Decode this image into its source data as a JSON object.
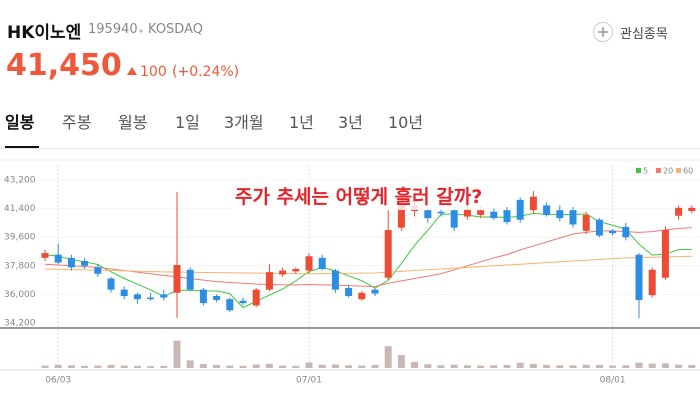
{
  "header": {
    "name": "HK이노엔",
    "code": "195940",
    "market": "KOSDAQ",
    "watch": "관심종목",
    "price": "41,450",
    "change": "100",
    "change_pct": "(+0.24%)"
  },
  "tabs": [
    "일봉",
    "주봉",
    "월봉",
    "1일",
    "3개월",
    "1년",
    "3년",
    "10년"
  ],
  "chart_data": {
    "type": "candlestick",
    "annotation": "주가 추세는 어떻게 흘러 갈까?",
    "categories": [
      null,
      "06/03",
      null,
      null,
      null,
      null,
      null,
      null,
      null,
      null,
      null,
      null,
      null,
      null,
      null,
      null,
      null,
      null,
      null,
      null,
      "07/01",
      null,
      null,
      null,
      null,
      null,
      null,
      null,
      null,
      null,
      null,
      null,
      null,
      null,
      null,
      null,
      null,
      null,
      null,
      null,
      null,
      null,
      null,
      "08/01",
      null,
      null,
      null,
      null,
      null,
      null
    ],
    "open": [
      38300,
      38500,
      38300,
      38100,
      37700,
      37000,
      36300,
      36000,
      35800,
      36000,
      36100,
      37550,
      36300,
      35900,
      35700,
      35600,
      35300,
      36300,
      37250,
      37450,
      37500,
      38300,
      37500,
      36400,
      35700,
      36300,
      37050,
      40200,
      41250,
      41300,
      41200,
      41300,
      40900,
      41000,
      41200,
      41300,
      41950,
      41300,
      41600,
      41300,
      41300,
      40000,
      40700,
      40000,
      40250,
      38500,
      35950,
      37050,
      40950,
      41250
    ],
    "high": [
      38800,
      39200,
      38500,
      38300,
      37900,
      37100,
      36500,
      36100,
      36100,
      36300,
      42450,
      37700,
      36400,
      36000,
      35800,
      35800,
      36400,
      37900,
      37700,
      37700,
      38600,
      38500,
      37600,
      36600,
      36200,
      36400,
      41300,
      42000,
      42000,
      41500,
      41400,
      41500,
      41600,
      41600,
      41400,
      41500,
      42100,
      42500,
      41800,
      41600,
      41500,
      41200,
      40800,
      40100,
      40500,
      38600,
      37700,
      40300,
      41600,
      41600
    ],
    "low": [
      38100,
      37900,
      37500,
      37600,
      37100,
      36100,
      35700,
      35400,
      35600,
      35600,
      34520,
      36200,
      35300,
      35500,
      34900,
      35300,
      35200,
      36200,
      37100,
      37300,
      37300,
      37500,
      36100,
      35800,
      35600,
      35900,
      36900,
      40000,
      40900,
      40500,
      40900,
      40000,
      40700,
      40800,
      40700,
      40400,
      40500,
      41100,
      40900,
      40600,
      40200,
      39800,
      39600,
      39700,
      39400,
      34500,
      35800,
      36900,
      40700,
      41100
    ],
    "close": [
      38600,
      38000,
      37700,
      37800,
      37300,
      36300,
      35900,
      35700,
      35700,
      35800,
      37850,
      36300,
      35450,
      35650,
      35000,
      35450,
      36300,
      37400,
      37500,
      37600,
      38400,
      37600,
      36300,
      35900,
      36100,
      36050,
      40050,
      41650,
      41600,
      40800,
      41100,
      40200,
      41350,
      41300,
      40800,
      40550,
      40700,
      42150,
      41000,
      40800,
      40400,
      41000,
      39700,
      39850,
      39600,
      35650,
      37550,
      40050,
      41450,
      41450
    ],
    "up_color": "#ee4b35",
    "down_color": "#2b8de3",
    "volume": [
      90000,
      120000,
      100000,
      80000,
      90000,
      110000,
      90000,
      80000,
      70000,
      80000,
      1000000,
      280000,
      150000,
      110000,
      90000,
      80000,
      130000,
      150000,
      90000,
      80000,
      200000,
      120000,
      130000,
      100000,
      90000,
      110000,
      800000,
      480000,
      220000,
      140000,
      100000,
      120000,
      100000,
      90000,
      100000,
      110000,
      190000,
      150000,
      110000,
      100000,
      100000,
      120000,
      110000,
      90000,
      100000,
      200000,
      160000,
      170000,
      120000,
      110000
    ],
    "volume_color": "#c9b7b5",
    "vlim": [
      0,
      1100000
    ],
    "ylim": [
      33885,
      43829
    ],
    "yticks": [
      {
        "value": 34200,
        "label": "34,200"
      },
      {
        "value": 36000,
        "label": "36,000"
      },
      {
        "value": 37800,
        "label": "37,800"
      },
      {
        "value": 39600,
        "label": "39,600"
      },
      {
        "value": 41400,
        "label": "41,400"
      },
      {
        "value": 43200,
        "label": "43,200"
      }
    ],
    "moving_averages": [
      {
        "name": "5",
        "color": "#3cc83c",
        "values": [
          38500,
          38400,
          38200,
          38050,
          37880,
          37420,
          37000,
          36640,
          36280,
          35880,
          36250,
          36270,
          36220,
          36210,
          36050,
          35170,
          35570,
          35960,
          36330,
          36850,
          37440,
          37700,
          37480,
          37160,
          36860,
          36390,
          36880,
          37950,
          39090,
          40030,
          41040,
          41070,
          40990,
          40870,
          40880,
          40840,
          40920,
          41100,
          41040,
          41040,
          41010,
          41070,
          40580,
          40350,
          40110,
          39160,
          38470,
          38540,
          38820,
          38830
        ]
      },
      {
        "name": "20",
        "color": "#f07a70",
        "values": [
          37900,
          37850,
          37800,
          37750,
          37700,
          37600,
          37500,
          37400,
          37300,
          37200,
          37100,
          37000,
          36900,
          36800,
          36750,
          36700,
          36650,
          36620,
          36600,
          36600,
          36620,
          36600,
          36580,
          36550,
          36520,
          36500,
          36700,
          36850,
          37000,
          37150,
          37300,
          37550,
          37800,
          38050,
          38300,
          38500,
          38800,
          39050,
          39300,
          39550,
          39800,
          39900,
          40000,
          40000,
          39950,
          39900,
          39950,
          40050,
          40150,
          40200
        ]
      },
      {
        "name": "60",
        "color": "#f5b56e",
        "values": [
          37600,
          37580,
          37560,
          37540,
          37520,
          37500,
          37480,
          37460,
          37440,
          37420,
          37400,
          37390,
          37380,
          37370,
          37360,
          37350,
          37340,
          37330,
          37320,
          37310,
          37300,
          37310,
          37320,
          37330,
          37340,
          37350,
          37400,
          37450,
          37500,
          37550,
          37600,
          37650,
          37700,
          37750,
          37800,
          37850,
          37900,
          37950,
          38000,
          38050,
          38100,
          38150,
          38200,
          38250,
          38300,
          38320,
          38340,
          38360,
          38380,
          38400
        ]
      }
    ]
  }
}
